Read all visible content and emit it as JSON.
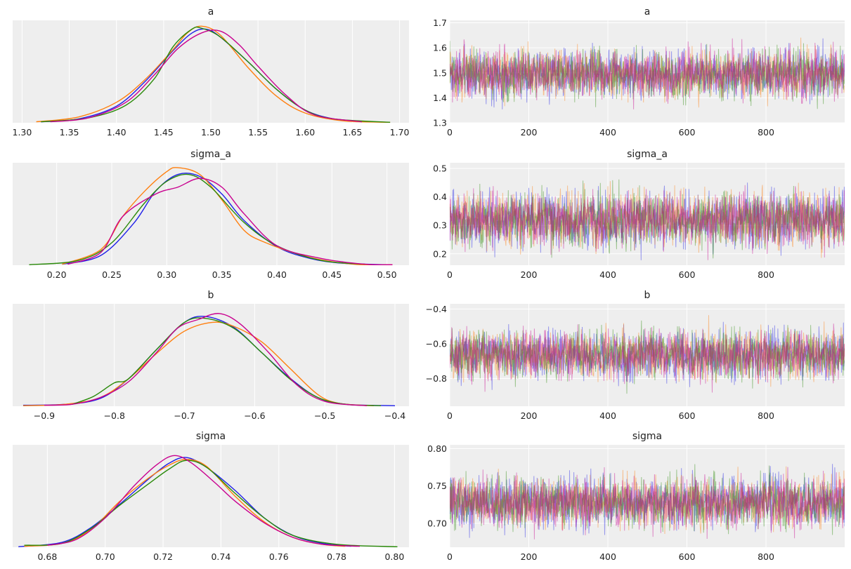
{
  "colors": {
    "panel_bg": "#eeeeee",
    "grid": "#ffffff",
    "chains": [
      "#1f1fe8",
      "#ff7f0e",
      "#2a8a0a",
      "#c9008f"
    ]
  },
  "chart_data": [
    {
      "type": "line",
      "title": "a",
      "kind": "kde",
      "grid": true,
      "xlim": [
        1.29,
        1.71
      ],
      "xticks": [
        1.3,
        1.35,
        1.4,
        1.45,
        1.5,
        1.55,
        1.6,
        1.65,
        1.7
      ],
      "xtick_labels": [
        "1.30",
        "1.35",
        "1.40",
        "1.45",
        "1.50",
        "1.55",
        "1.60",
        "1.65",
        "1.70"
      ],
      "yticks": [],
      "ylim": [
        0,
        1.05
      ],
      "series": [
        {
          "x": [
            1.32,
            1.36,
            1.4,
            1.43,
            1.46,
            1.48,
            1.495,
            1.51,
            1.54,
            1.57,
            1.6,
            1.63,
            1.66
          ],
          "y": [
            0.01,
            0.04,
            0.17,
            0.42,
            0.74,
            0.92,
            0.96,
            0.88,
            0.62,
            0.34,
            0.13,
            0.04,
            0.01
          ]
        },
        {
          "x": [
            1.315,
            1.36,
            1.4,
            1.43,
            1.46,
            1.475,
            1.49,
            1.51,
            1.54,
            1.57,
            1.6,
            1.64,
            1.69
          ],
          "y": [
            0.01,
            0.06,
            0.21,
            0.44,
            0.75,
            0.92,
            0.99,
            0.9,
            0.56,
            0.27,
            0.1,
            0.02,
            0.005
          ]
        },
        {
          "x": [
            1.32,
            1.37,
            1.41,
            1.44,
            1.46,
            1.48,
            1.49,
            1.51,
            1.54,
            1.57,
            1.6,
            1.63,
            1.69
          ],
          "y": [
            0.01,
            0.05,
            0.18,
            0.45,
            0.78,
            0.96,
            0.97,
            0.88,
            0.62,
            0.34,
            0.13,
            0.04,
            0.005
          ]
        },
        {
          "x": [
            1.33,
            1.37,
            1.41,
            1.44,
            1.465,
            1.49,
            1.51,
            1.53,
            1.55,
            1.58,
            1.61,
            1.66
          ],
          "y": [
            0.01,
            0.05,
            0.21,
            0.49,
            0.76,
            0.92,
            0.94,
            0.8,
            0.58,
            0.28,
            0.08,
            0.01
          ]
        }
      ]
    },
    {
      "type": "line",
      "title": "a",
      "kind": "trace",
      "grid": true,
      "xlim": [
        0,
        999
      ],
      "xticks": [
        0,
        200,
        400,
        600,
        800
      ],
      "xtick_labels": [
        "0",
        "200",
        "400",
        "600",
        "800"
      ],
      "ylim": [
        1.3,
        1.71
      ],
      "yticks": [
        1.3,
        1.4,
        1.5,
        1.6,
        1.7
      ],
      "ytick_labels": [
        "1.3",
        "1.4",
        "1.5",
        "1.6",
        "1.7"
      ],
      "n_draws": 1000,
      "center": 1.495,
      "spread": 0.048,
      "seed": 11
    },
    {
      "type": "line",
      "title": "sigma_a",
      "kind": "kde",
      "grid": true,
      "xlim": [
        0.16,
        0.52
      ],
      "xticks": [
        0.2,
        0.25,
        0.3,
        0.35,
        0.4,
        0.45,
        0.5
      ],
      "xtick_labels": [
        "0.20",
        "0.25",
        "0.30",
        "0.35",
        "0.40",
        "0.45",
        "0.50"
      ],
      "yticks": [],
      "ylim": [
        0,
        1.05
      ],
      "series": [
        {
          "x": [
            0.205,
            0.24,
            0.27,
            0.29,
            0.31,
            0.33,
            0.35,
            0.37,
            0.4,
            0.43,
            0.46,
            0.5
          ],
          "y": [
            0.01,
            0.1,
            0.43,
            0.76,
            0.93,
            0.91,
            0.73,
            0.46,
            0.19,
            0.07,
            0.02,
            0.005
          ]
        },
        {
          "x": [
            0.205,
            0.24,
            0.26,
            0.28,
            0.3,
            0.31,
            0.33,
            0.35,
            0.37,
            0.39,
            0.43,
            0.47,
            0.505
          ],
          "y": [
            0.01,
            0.16,
            0.5,
            0.76,
            0.96,
            1.0,
            0.93,
            0.67,
            0.36,
            0.23,
            0.08,
            0.01,
            0.005
          ]
        },
        {
          "x": [
            0.175,
            0.22,
            0.25,
            0.28,
            0.3,
            0.32,
            0.34,
            0.37,
            0.4,
            0.44,
            0.48
          ],
          "y": [
            0.005,
            0.05,
            0.23,
            0.64,
            0.86,
            0.93,
            0.8,
            0.44,
            0.2,
            0.05,
            0.01
          ]
        },
        {
          "x": [
            0.21,
            0.24,
            0.26,
            0.29,
            0.31,
            0.33,
            0.35,
            0.37,
            0.4,
            0.44,
            0.48,
            0.505
          ],
          "y": [
            0.01,
            0.13,
            0.5,
            0.73,
            0.8,
            0.89,
            0.8,
            0.53,
            0.2,
            0.07,
            0.01,
            0.005
          ]
        }
      ]
    },
    {
      "type": "line",
      "title": "sigma_a",
      "kind": "trace",
      "grid": true,
      "xlim": [
        0,
        999
      ],
      "xticks": [
        0,
        200,
        400,
        600,
        800
      ],
      "xtick_labels": [
        "0",
        "200",
        "400",
        "600",
        "800"
      ],
      "ylim": [
        0.16,
        0.52
      ],
      "yticks": [
        0.2,
        0.3,
        0.4,
        0.5
      ],
      "ytick_labels": [
        "0.2",
        "0.3",
        "0.4",
        "0.5"
      ],
      "n_draws": 1000,
      "center": 0.32,
      "spread": 0.048,
      "seed": 23
    },
    {
      "type": "line",
      "title": "b",
      "kind": "kde",
      "grid": true,
      "xlim": [
        -0.945,
        -0.38
      ],
      "xticks": [
        -0.9,
        -0.8,
        -0.7,
        -0.6,
        -0.5,
        -0.4
      ],
      "xtick_labels": [
        "−0.9",
        "−0.8",
        "−0.7",
        "−0.6",
        "−0.5",
        "−0.4"
      ],
      "yticks": [],
      "ylim": [
        0,
        1.05
      ],
      "series": [
        {
          "x": [
            -0.93,
            -0.87,
            -0.82,
            -0.78,
            -0.74,
            -0.7,
            -0.67,
            -0.63,
            -0.59,
            -0.55,
            -0.51,
            -0.47,
            -0.4
          ],
          "y": [
            0.01,
            0.02,
            0.08,
            0.28,
            0.58,
            0.86,
            0.92,
            0.81,
            0.55,
            0.29,
            0.09,
            0.02,
            0.005
          ]
        },
        {
          "x": [
            -0.93,
            -0.87,
            -0.82,
            -0.78,
            -0.74,
            -0.7,
            -0.66,
            -0.63,
            -0.59,
            -0.55,
            -0.51,
            -0.48,
            -0.43
          ],
          "y": [
            0.005,
            0.02,
            0.09,
            0.28,
            0.54,
            0.77,
            0.86,
            0.82,
            0.66,
            0.39,
            0.12,
            0.03,
            0.005
          ]
        },
        {
          "x": [
            -0.86,
            -0.83,
            -0.8,
            -0.78,
            -0.74,
            -0.7,
            -0.67,
            -0.63,
            -0.59,
            -0.55,
            -0.51,
            -0.47,
            -0.42
          ],
          "y": [
            0.02,
            0.1,
            0.24,
            0.28,
            0.58,
            0.86,
            0.9,
            0.8,
            0.55,
            0.28,
            0.09,
            0.02,
            0.005
          ]
        },
        {
          "x": [
            -0.9,
            -0.86,
            -0.82,
            -0.78,
            -0.74,
            -0.71,
            -0.68,
            -0.65,
            -0.62,
            -0.58,
            -0.54,
            -0.5,
            -0.44
          ],
          "y": [
            0.01,
            0.02,
            0.09,
            0.25,
            0.55,
            0.8,
            0.89,
            0.95,
            0.84,
            0.55,
            0.22,
            0.05,
            0.005
          ]
        }
      ]
    },
    {
      "type": "line",
      "title": "b",
      "kind": "trace",
      "grid": true,
      "xlim": [
        0,
        999
      ],
      "xticks": [
        0,
        200,
        400,
        600,
        800
      ],
      "xtick_labels": [
        "0",
        "200",
        "400",
        "600",
        "800"
      ],
      "ylim": [
        -0.96,
        -0.37
      ],
      "yticks": [
        -0.8,
        -0.6,
        -0.4
      ],
      "ytick_labels": [
        "−0.8",
        "−0.6",
        "−0.4"
      ],
      "n_draws": 1000,
      "center": -0.665,
      "spread": 0.07,
      "seed": 37
    },
    {
      "type": "line",
      "title": "sigma",
      "kind": "kde",
      "grid": true,
      "xlim": [
        0.668,
        0.805
      ],
      "xticks": [
        0.68,
        0.7,
        0.72,
        0.74,
        0.76,
        0.78,
        0.8
      ],
      "xtick_labels": [
        "0.68",
        "0.70",
        "0.72",
        "0.74",
        "0.76",
        "0.78",
        "0.80"
      ],
      "yticks": [],
      "ylim": [
        0,
        1.05
      ],
      "series": [
        {
          "x": [
            0.67,
            0.685,
            0.695,
            0.705,
            0.715,
            0.722,
            0.728,
            0.735,
            0.745,
            0.755,
            0.765,
            0.775,
            0.785
          ],
          "y": [
            0.005,
            0.05,
            0.2,
            0.44,
            0.7,
            0.86,
            0.92,
            0.82,
            0.58,
            0.3,
            0.12,
            0.04,
            0.01
          ]
        },
        {
          "x": [
            0.672,
            0.685,
            0.695,
            0.705,
            0.715,
            0.722,
            0.728,
            0.735,
            0.745,
            0.755,
            0.765,
            0.775,
            0.783
          ],
          "y": [
            0.01,
            0.04,
            0.18,
            0.47,
            0.71,
            0.84,
            0.9,
            0.83,
            0.52,
            0.26,
            0.1,
            0.03,
            0.01
          ]
        },
        {
          "x": [
            0.672,
            0.685,
            0.695,
            0.705,
            0.715,
            0.722,
            0.728,
            0.735,
            0.745,
            0.755,
            0.765,
            0.78,
            0.801
          ],
          "y": [
            0.02,
            0.04,
            0.19,
            0.43,
            0.65,
            0.8,
            0.89,
            0.82,
            0.55,
            0.3,
            0.12,
            0.03,
            0.005
          ]
        },
        {
          "x": [
            0.68,
            0.69,
            0.7,
            0.71,
            0.718,
            0.724,
            0.73,
            0.738,
            0.745,
            0.755,
            0.765,
            0.775,
            0.788
          ],
          "y": [
            0.02,
            0.08,
            0.3,
            0.63,
            0.85,
            0.94,
            0.86,
            0.66,
            0.47,
            0.25,
            0.1,
            0.03,
            0.01
          ]
        }
      ]
    },
    {
      "type": "line",
      "title": "sigma",
      "kind": "trace",
      "grid": true,
      "xlim": [
        0,
        999
      ],
      "xticks": [
        0,
        200,
        400,
        600,
        800
      ],
      "xtick_labels": [
        "0",
        "200",
        "400",
        "600",
        "800"
      ],
      "ylim": [
        0.668,
        0.805
      ],
      "yticks": [
        0.7,
        0.75,
        0.8
      ],
      "ytick_labels": [
        "0.70",
        "0.75",
        "0.80"
      ],
      "n_draws": 1000,
      "center": 0.728,
      "spread": 0.017,
      "seed": 53
    }
  ]
}
